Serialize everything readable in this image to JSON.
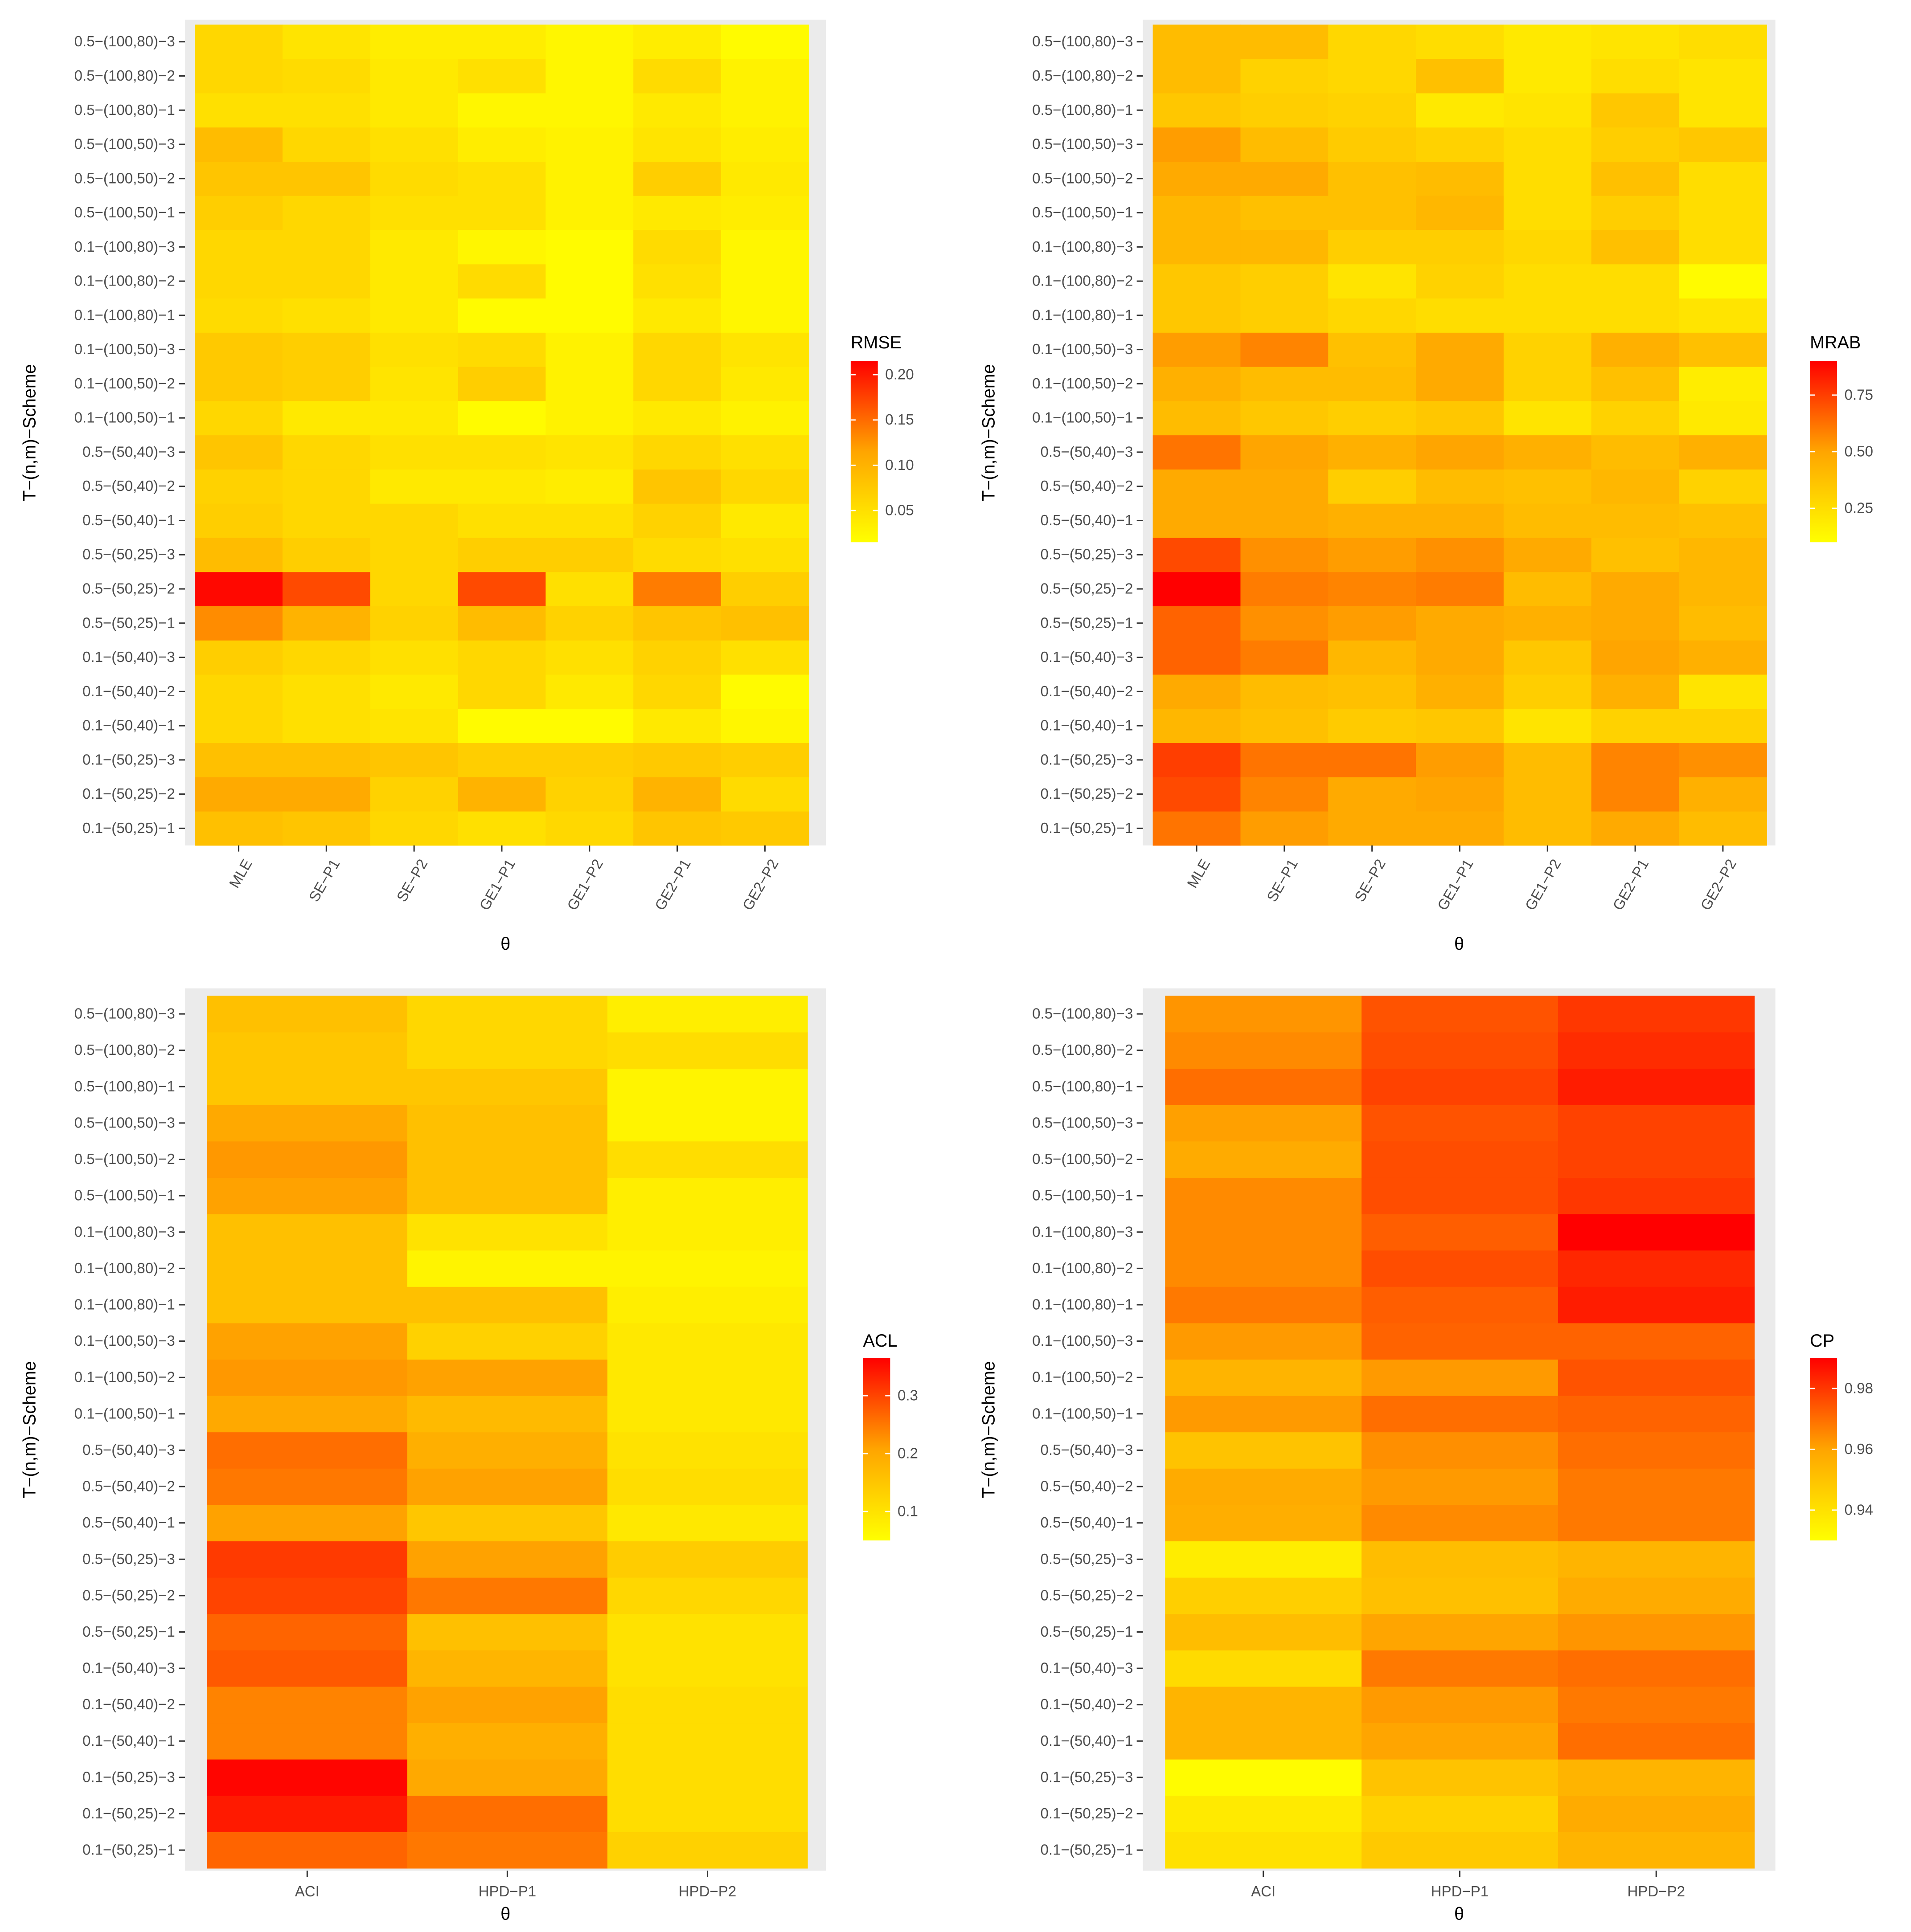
{
  "chart_data": [
    {
      "type": "heatmap",
      "title": "",
      "xlabel": "θ",
      "ylabel": "T−(n,m)−Scheme",
      "x_categories": [
        "MLE",
        "SE−P1",
        "SE−P2",
        "GE1−P1",
        "GE1−P2",
        "GE2−P1",
        "GE2−P2"
      ],
      "x_tick_rotation": "angled",
      "y_categories": [
        "0.1−(50,25)−1",
        "0.1−(50,25)−2",
        "0.1−(50,25)−3",
        "0.1−(50,40)−1",
        "0.1−(50,40)−2",
        "0.1−(50,40)−3",
        "0.5−(50,25)−1",
        "0.5−(50,25)−2",
        "0.5−(50,25)−3",
        "0.5−(50,40)−1",
        "0.5−(50,40)−2",
        "0.5−(50,40)−3",
        "0.1−(100,50)−1",
        "0.1−(100,50)−2",
        "0.1−(100,50)−3",
        "0.1−(100,80)−1",
        "0.1−(100,80)−2",
        "0.1−(100,80)−3",
        "0.5−(100,50)−1",
        "0.5−(100,50)−2",
        "0.5−(100,50)−3",
        "0.5−(100,80)−1",
        "0.5−(100,80)−2",
        "0.5−(100,80)−3"
      ],
      "legend": {
        "title": "RMSE",
        "min": 0.015,
        "max": 0.215,
        "breaks": [
          0.05,
          0.1,
          0.15,
          0.2
        ],
        "break_labels": [
          "0.05",
          "0.10",
          "0.15",
          "0.20"
        ],
        "position": "right"
      },
      "color_scale": [
        "#ffff00",
        "#ffa500",
        "#ff0000"
      ],
      "values": [
        [
          0.085,
          0.08,
          0.06,
          0.05,
          0.058,
          0.08,
          0.075
        ],
        [
          0.11,
          0.11,
          0.065,
          0.1,
          0.065,
          0.1,
          0.055
        ],
        [
          0.085,
          0.085,
          0.08,
          0.07,
          0.07,
          0.075,
          0.07
        ],
        [
          0.06,
          0.05,
          0.045,
          0.02,
          0.02,
          0.04,
          0.025
        ],
        [
          0.06,
          0.05,
          0.04,
          0.06,
          0.04,
          0.06,
          0.02
        ],
        [
          0.07,
          0.06,
          0.05,
          0.06,
          0.05,
          0.065,
          0.05
        ],
        [
          0.13,
          0.1,
          0.065,
          0.09,
          0.065,
          0.08,
          0.085
        ],
        [
          0.21,
          0.17,
          0.06,
          0.17,
          0.05,
          0.14,
          0.07
        ],
        [
          0.09,
          0.07,
          0.06,
          0.07,
          0.07,
          0.055,
          0.05
        ],
        [
          0.07,
          0.06,
          0.06,
          0.05,
          0.05,
          0.065,
          0.04
        ],
        [
          0.065,
          0.06,
          0.04,
          0.04,
          0.035,
          0.08,
          0.06
        ],
        [
          0.08,
          0.06,
          0.05,
          0.05,
          0.045,
          0.06,
          0.05
        ],
        [
          0.06,
          0.04,
          0.04,
          0.02,
          0.03,
          0.04,
          0.03
        ],
        [
          0.075,
          0.07,
          0.045,
          0.07,
          0.03,
          0.06,
          0.04
        ],
        [
          0.075,
          0.07,
          0.05,
          0.055,
          0.03,
          0.06,
          0.045
        ],
        [
          0.055,
          0.05,
          0.04,
          0.02,
          0.02,
          0.04,
          0.025
        ],
        [
          0.06,
          0.06,
          0.04,
          0.055,
          0.02,
          0.05,
          0.025
        ],
        [
          0.06,
          0.06,
          0.04,
          0.025,
          0.02,
          0.055,
          0.025
        ],
        [
          0.07,
          0.06,
          0.05,
          0.05,
          0.03,
          0.04,
          0.035
        ],
        [
          0.08,
          0.08,
          0.055,
          0.05,
          0.03,
          0.07,
          0.04
        ],
        [
          0.09,
          0.06,
          0.05,
          0.035,
          0.03,
          0.045,
          0.035
        ],
        [
          0.05,
          0.05,
          0.04,
          0.025,
          0.025,
          0.04,
          0.03
        ],
        [
          0.06,
          0.055,
          0.04,
          0.05,
          0.025,
          0.055,
          0.03
        ],
        [
          0.06,
          0.045,
          0.035,
          0.035,
          0.025,
          0.035,
          0.02
        ]
      ]
    },
    {
      "type": "heatmap",
      "title": "",
      "xlabel": "θ",
      "ylabel": "T−(n,m)−Scheme",
      "x_categories": [
        "MLE",
        "SE−P1",
        "SE−P2",
        "GE1−P1",
        "GE1−P2",
        "GE2−P1",
        "GE2−P2"
      ],
      "x_tick_rotation": "angled",
      "y_categories": [
        "0.1−(50,25)−1",
        "0.1−(50,25)−2",
        "0.1−(50,25)−3",
        "0.1−(50,40)−1",
        "0.1−(50,40)−2",
        "0.1−(50,40)−3",
        "0.5−(50,25)−1",
        "0.5−(50,25)−2",
        "0.5−(50,25)−3",
        "0.5−(50,40)−1",
        "0.5−(50,40)−2",
        "0.5−(50,40)−3",
        "0.1−(100,50)−1",
        "0.1−(100,50)−2",
        "0.1−(100,50)−3",
        "0.1−(100,80)−1",
        "0.1−(100,80)−2",
        "0.1−(100,80)−3",
        "0.5−(100,50)−1",
        "0.5−(100,50)−2",
        "0.5−(100,50)−3",
        "0.5−(100,80)−1",
        "0.5−(100,80)−2",
        "0.5−(100,80)−3"
      ],
      "legend": {
        "title": "MRAB",
        "min": 0.1,
        "max": 0.9,
        "breaks": [
          0.25,
          0.5,
          0.75
        ],
        "break_labels": [
          "0.25",
          "0.50",
          "0.75"
        ],
        "position": "right"
      },
      "color_scale": [
        "#ffff00",
        "#ffa500",
        "#ff0000"
      ],
      "values": [
        [
          0.62,
          0.52,
          0.48,
          0.48,
          0.4,
          0.48,
          0.4
        ],
        [
          0.72,
          0.58,
          0.48,
          0.5,
          0.4,
          0.58,
          0.45
        ],
        [
          0.75,
          0.62,
          0.62,
          0.52,
          0.4,
          0.58,
          0.55
        ],
        [
          0.42,
          0.38,
          0.33,
          0.35,
          0.22,
          0.3,
          0.3
        ],
        [
          0.48,
          0.4,
          0.38,
          0.45,
          0.32,
          0.45,
          0.22
        ],
        [
          0.66,
          0.6,
          0.42,
          0.48,
          0.35,
          0.5,
          0.45
        ],
        [
          0.66,
          0.55,
          0.52,
          0.48,
          0.45,
          0.48,
          0.4
        ],
        [
          0.9,
          0.6,
          0.58,
          0.6,
          0.4,
          0.48,
          0.42
        ],
        [
          0.72,
          0.55,
          0.52,
          0.55,
          0.48,
          0.38,
          0.42
        ],
        [
          0.48,
          0.48,
          0.45,
          0.45,
          0.4,
          0.4,
          0.38
        ],
        [
          0.48,
          0.48,
          0.32,
          0.4,
          0.38,
          0.42,
          0.3
        ],
        [
          0.62,
          0.5,
          0.45,
          0.5,
          0.45,
          0.4,
          0.45
        ],
        [
          0.4,
          0.35,
          0.32,
          0.35,
          0.22,
          0.3,
          0.2
        ],
        [
          0.45,
          0.4,
          0.4,
          0.48,
          0.3,
          0.38,
          0.18
        ],
        [
          0.52,
          0.58,
          0.38,
          0.48,
          0.3,
          0.45,
          0.38
        ],
        [
          0.35,
          0.32,
          0.28,
          0.25,
          0.25,
          0.25,
          0.22
        ],
        [
          0.35,
          0.32,
          0.22,
          0.3,
          0.25,
          0.25,
          0.12
        ],
        [
          0.42,
          0.42,
          0.32,
          0.32,
          0.28,
          0.38,
          0.25
        ],
        [
          0.42,
          0.38,
          0.38,
          0.42,
          0.25,
          0.32,
          0.25
        ],
        [
          0.48,
          0.48,
          0.38,
          0.4,
          0.25,
          0.38,
          0.25
        ],
        [
          0.52,
          0.4,
          0.33,
          0.3,
          0.25,
          0.32,
          0.35
        ],
        [
          0.35,
          0.32,
          0.3,
          0.2,
          0.22,
          0.35,
          0.22
        ],
        [
          0.4,
          0.3,
          0.28,
          0.38,
          0.2,
          0.25,
          0.22
        ],
        [
          0.4,
          0.4,
          0.28,
          0.25,
          0.2,
          0.22,
          0.25
        ]
      ]
    },
    {
      "type": "heatmap",
      "title": "",
      "xlabel": "θ",
      "ylabel": "T−(n,m)−Scheme",
      "x_categories": [
        "ACI",
        "HPD−P1",
        "HPD−P2"
      ],
      "x_tick_rotation": "horizontal",
      "y_categories": [
        "0.1−(50,25)−1",
        "0.1−(50,25)−2",
        "0.1−(50,25)−3",
        "0.1−(50,40)−1",
        "0.1−(50,40)−2",
        "0.1−(50,40)−3",
        "0.5−(50,25)−1",
        "0.5−(50,25)−2",
        "0.5−(50,25)−3",
        "0.5−(50,40)−1",
        "0.5−(50,40)−2",
        "0.5−(50,40)−3",
        "0.1−(100,50)−1",
        "0.1−(100,50)−2",
        "0.1−(100,50)−3",
        "0.1−(100,80)−1",
        "0.1−(100,80)−2",
        "0.1−(100,80)−3",
        "0.5−(100,50)−1",
        "0.5−(100,50)−2",
        "0.5−(100,50)−3",
        "0.5−(100,80)−1",
        "0.5−(100,80)−2",
        "0.5−(100,80)−3"
      ],
      "legend": {
        "title": "ACL",
        "min": 0.05,
        "max": 0.365,
        "breaks": [
          0.1,
          0.2,
          0.3
        ],
        "break_labels": [
          "0.1",
          "0.2",
          "0.3"
        ],
        "position": "right"
      },
      "color_scale": [
        "#ffff00",
        "#ffa500",
        "#ff0000"
      ],
      "values": [
        [
          0.27,
          0.25,
          0.13
        ],
        [
          0.34,
          0.26,
          0.11
        ],
        [
          0.36,
          0.2,
          0.11
        ],
        [
          0.24,
          0.19,
          0.11
        ],
        [
          0.24,
          0.21,
          0.11
        ],
        [
          0.28,
          0.18,
          0.1
        ],
        [
          0.27,
          0.16,
          0.1
        ],
        [
          0.3,
          0.25,
          0.12
        ],
        [
          0.31,
          0.21,
          0.14
        ],
        [
          0.21,
          0.15,
          0.09
        ],
        [
          0.25,
          0.21,
          0.11
        ],
        [
          0.26,
          0.19,
          0.1
        ],
        [
          0.2,
          0.17,
          0.09
        ],
        [
          0.22,
          0.21,
          0.09
        ],
        [
          0.21,
          0.13,
          0.09
        ],
        [
          0.16,
          0.16,
          0.08
        ],
        [
          0.16,
          0.07,
          0.07
        ],
        [
          0.16,
          0.1,
          0.08
        ],
        [
          0.21,
          0.16,
          0.08
        ],
        [
          0.22,
          0.16,
          0.11
        ],
        [
          0.2,
          0.16,
          0.07
        ],
        [
          0.15,
          0.15,
          0.07
        ],
        [
          0.15,
          0.12,
          0.11
        ],
        [
          0.16,
          0.12,
          0.08
        ]
      ]
    },
    {
      "type": "heatmap",
      "title": "",
      "xlabel": "θ",
      "ylabel": "T−(n,m)−Scheme",
      "x_categories": [
        "ACI",
        "HPD−P1",
        "HPD−P2"
      ],
      "x_tick_rotation": "horizontal",
      "y_categories": [
        "0.1−(50,25)−1",
        "0.1−(50,25)−2",
        "0.1−(50,25)−3",
        "0.1−(50,40)−1",
        "0.1−(50,40)−2",
        "0.1−(50,40)−3",
        "0.5−(50,25)−1",
        "0.5−(50,25)−2",
        "0.5−(50,25)−3",
        "0.5−(50,40)−1",
        "0.5−(50,40)−2",
        "0.5−(50,40)−3",
        "0.1−(100,50)−1",
        "0.1−(100,50)−2",
        "0.1−(100,50)−3",
        "0.1−(100,80)−1",
        "0.1−(100,80)−2",
        "0.1−(100,80)−3",
        "0.5−(100,50)−1",
        "0.5−(100,50)−2",
        "0.5−(100,50)−3",
        "0.5−(100,80)−1",
        "0.5−(100,80)−2",
        "0.5−(100,80)−3"
      ],
      "legend": {
        "title": "CP",
        "min": 0.93,
        "max": 0.99,
        "breaks": [
          0.94,
          0.96,
          0.98
        ],
        "break_labels": [
          "0.94",
          "0.96",
          "0.98"
        ],
        "position": "right"
      },
      "color_scale": [
        "#ffff00",
        "#ffa500",
        "#ff0000"
      ],
      "values": [
        [
          0.94,
          0.948,
          0.955
        ],
        [
          0.937,
          0.945,
          0.958
        ],
        [
          0.931,
          0.95,
          0.955
        ],
        [
          0.955,
          0.96,
          0.97
        ],
        [
          0.955,
          0.962,
          0.968
        ],
        [
          0.942,
          0.968,
          0.97
        ],
        [
          0.952,
          0.96,
          0.963
        ],
        [
          0.946,
          0.951,
          0.958
        ],
        [
          0.936,
          0.952,
          0.955
        ],
        [
          0.957,
          0.965,
          0.968
        ],
        [
          0.958,
          0.962,
          0.968
        ],
        [
          0.95,
          0.964,
          0.97
        ],
        [
          0.962,
          0.97,
          0.972
        ],
        [
          0.955,
          0.962,
          0.975
        ],
        [
          0.962,
          0.972,
          0.972
        ],
        [
          0.968,
          0.973,
          0.985
        ],
        [
          0.965,
          0.976,
          0.983
        ],
        [
          0.965,
          0.973,
          0.99
        ],
        [
          0.965,
          0.976,
          0.98
        ],
        [
          0.958,
          0.976,
          0.978
        ],
        [
          0.961,
          0.975,
          0.978
        ],
        [
          0.97,
          0.978,
          0.985
        ],
        [
          0.965,
          0.976,
          0.982
        ],
        [
          0.963,
          0.975,
          0.98
        ]
      ]
    }
  ]
}
